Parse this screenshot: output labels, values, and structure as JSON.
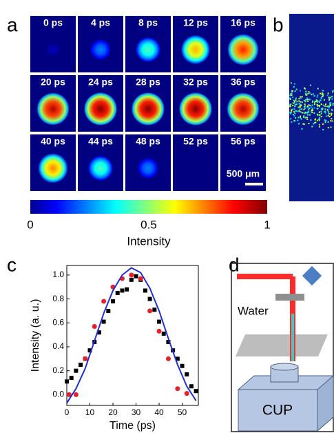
{
  "panel_labels": [
    "a",
    "b",
    "c",
    "d"
  ],
  "panel_a": {
    "frames": [
      {
        "label": "0 ps",
        "intensity": 0.05
      },
      {
        "label": "4 ps",
        "intensity": 0.25
      },
      {
        "label": "8 ps",
        "intensity": 0.45
      },
      {
        "label": "12 ps",
        "intensity": 0.7
      },
      {
        "label": "16 ps",
        "intensity": 0.85
      },
      {
        "label": "20 ps",
        "intensity": 0.95
      },
      {
        "label": "24 ps",
        "intensity": 1.0
      },
      {
        "label": "28 ps",
        "intensity": 1.0
      },
      {
        "label": "32 ps",
        "intensity": 1.0
      },
      {
        "label": "36 ps",
        "intensity": 0.95
      },
      {
        "label": "40 ps",
        "intensity": 0.75
      },
      {
        "label": "44 ps",
        "intensity": 0.45
      },
      {
        "label": "48 ps",
        "intensity": 0.25
      },
      {
        "label": "52 ps",
        "intensity": 0
      },
      {
        "label": "56 ps",
        "intensity": 0
      }
    ],
    "scale_bar": "500 μm",
    "colorbar": {
      "lim": [
        0,
        1
      ],
      "ticks": [
        0,
        0.5,
        1
      ],
      "label": "Intensity"
    }
  },
  "chart_data": {
    "type": "scatter",
    "x_label": "Time (ps)",
    "y_label": "Intensity (a. u.)",
    "xlim": [
      0,
      57
    ],
    "ylim": [
      -0.09,
      1.08
    ],
    "xticks": [
      0,
      10,
      20,
      30,
      40,
      50
    ],
    "yticks": [
      {
        "value": 0,
        "label": "0.0"
      },
      {
        "value": 0.2,
        "label": "0.2"
      },
      {
        "value": 0.4,
        "label": "0.4"
      },
      {
        "value": 0.6,
        "label": "0.6"
      },
      {
        "value": 0.8,
        "label": "0.8"
      },
      {
        "value": 1.0,
        "label": "1.0"
      }
    ],
    "series": [
      {
        "style": "square",
        "color": "#000000",
        "x": [
          0,
          2,
          4,
          6,
          8,
          10,
          12,
          14,
          16,
          18,
          20,
          22,
          24,
          26,
          28,
          30,
          32,
          34,
          36,
          38,
          40,
          42,
          44,
          46,
          48,
          50,
          52,
          54,
          56
        ],
        "values": [
          0.11,
          0.14,
          0.2,
          0.25,
          0.3,
          0.37,
          0.44,
          0.52,
          0.61,
          0.7,
          0.78,
          0.85,
          0.87,
          0.88,
          0.96,
          0.99,
          0.96,
          0.87,
          0.8,
          0.71,
          0.61,
          0.51,
          0.44,
          0.37,
          0.3,
          0.24,
          0.17,
          0.07,
          0.03
        ]
      },
      {
        "style": "circle",
        "color": "#e8202a",
        "x": [
          1,
          4,
          8,
          12,
          16,
          20,
          24,
          28,
          32,
          36,
          40,
          44,
          48,
          52
        ],
        "values": [
          0.0,
          0.0,
          0.3,
          0.57,
          0.78,
          0.9,
          0.97,
          1.0,
          0.97,
          0.7,
          0.53,
          0.3,
          0.05,
          0.01
        ]
      },
      {
        "style": "line",
        "color": "#1f2fd6",
        "x": [
          0,
          4,
          8,
          12,
          16,
          20,
          24,
          28,
          32,
          36,
          40,
          44,
          48,
          52,
          56
        ],
        "values": [
          -0.07,
          0.05,
          0.22,
          0.45,
          0.68,
          0.87,
          1.0,
          1.06,
          1.02,
          0.89,
          0.7,
          0.47,
          0.25,
          0.07,
          -0.05
        ]
      }
    ]
  },
  "panel_d": {
    "water": "Water",
    "device": "CUP"
  }
}
